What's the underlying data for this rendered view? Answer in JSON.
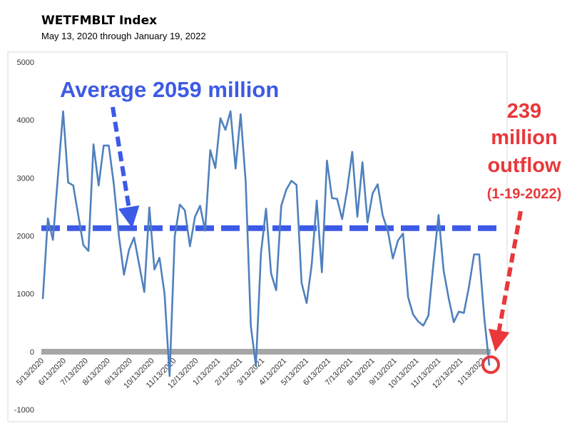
{
  "chart_data": {
    "type": "line",
    "title": "WETFMBLT Index",
    "subtitle": "May 13, 2020 through January 19, 2022",
    "ylim": [
      -1000,
      5000
    ],
    "yticks": [
      "5000",
      "4000",
      "3000",
      "2000",
      "1000",
      "0",
      "-1000"
    ],
    "ytick_values": [
      5000,
      4000,
      3000,
      2000,
      1000,
      0,
      -1000
    ],
    "xtick_labels": [
      "5/13/2020",
      "6/13/2020",
      "7/13/2020",
      "8/13/2020",
      "9/13/2020",
      "10/13/2020",
      "11/13/2020",
      "12/13/2020",
      "1/13/2021",
      "2/13/2021",
      "3/13/2021",
      "4/13/2021",
      "5/13/2021",
      "6/13/2021",
      "7/13/2021",
      "8/13/2021",
      "9/13/2021",
      "10/13/2021",
      "11/13/2021",
      "12/13/2021",
      "1/13/2022"
    ],
    "grid": false,
    "colors": {
      "series": "#4f81bd",
      "average": "#3d5ae6",
      "zero_line": "#a6a6a6",
      "annotation_red": "#e8383b"
    },
    "series": [
      {
        "values": [
          910,
          2300,
          1930,
          3040,
          4150,
          2920,
          2870,
          2350,
          1840,
          1740,
          3580,
          2870,
          3560,
          3560,
          2890,
          2000,
          1330,
          1760,
          1970,
          1500,
          1030,
          2490,
          1420,
          1620,
          1000,
          -420,
          1990,
          2540,
          2440,
          1820,
          2330,
          2520,
          2090,
          3480,
          3170,
          4030,
          3830,
          4150,
          3160,
          4100,
          2930,
          440,
          -250,
          1700,
          2470,
          1350,
          1060,
          2520,
          2800,
          2950,
          2880,
          1190,
          840,
          1500,
          2610,
          1370,
          3300,
          2650,
          2640,
          2290,
          2800,
          3450,
          2330,
          3270,
          2230,
          2730,
          2890,
          2350,
          2090,
          1610,
          1920,
          2040,
          940,
          640,
          520,
          450,
          620,
          1530,
          2360,
          1400,
          920,
          510,
          690,
          670,
          1120,
          1680,
          1680,
          600,
          -239
        ]
      }
    ],
    "average_line": {
      "value": 2059
    },
    "annotations": {
      "average_label": "Average 2059 million",
      "outflow_line1": "239",
      "outflow_line2": "million",
      "outflow_line3": "outflow",
      "outflow_date": "(1-19-2022)"
    }
  }
}
